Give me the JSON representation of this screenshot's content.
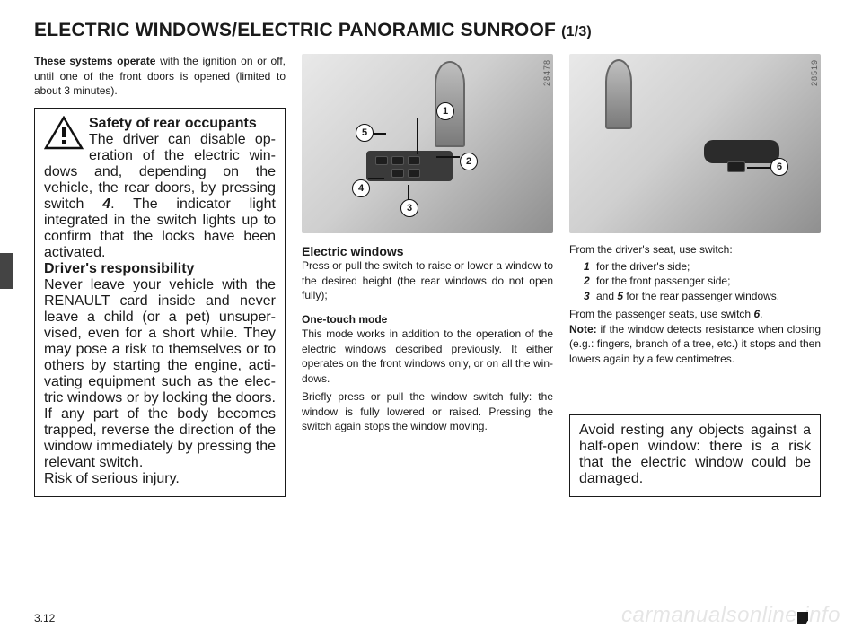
{
  "title_main": "ELECTRIC WINDOWS/ELECTRIC PANORAMIC SUNROOF ",
  "title_pager": "(1/3)",
  "intro_html": "<b>These systems operate</b> with the igni­tion on or off, until one of the front doors is opened (limited to about 3 minutes).",
  "warn_box": {
    "l1_b": "Safety of rear occupants",
    "l1_t": "The driver can disable op­eration of the electric win­dows and, depending on the vehicle, the rear doors, by pressing switch ",
    "l1_sw": "4",
    "l1_t2": ". The indicator light integrated in the switch lights up to confirm that the locks have been activated.",
    "l2_b": "Driver's responsibility",
    "l2_t": "Never leave your vehicle with the RENAULT card inside and never leave a child (or a pet) unsuper­vised, even for a short while. They may pose a risk to themselves or to others by starting the engine, acti­vating equipment such as the elec­tric windows or by locking the doors. If any part of the body becomes trapped, reverse the direction of the window immediately by pressing the relevant switch.",
    "l3": "Risk of serious injury."
  },
  "photo1_code": "28478",
  "photo2_code": "28519",
  "callouts": {
    "c1": "1",
    "c2": "2",
    "c3": "3",
    "c4": "4",
    "c5": "5",
    "c6": "6"
  },
  "mid": {
    "h": "Electric windows",
    "p1": "Press or pull the switch to raise or lower a window to the desired height (the rear windows do not open fully);",
    "h2": "One-touch mode",
    "p2": "This mode works in addition to the operation of the electric windows de­scribed previously. It either operates on the front windows only, or on all the win­dows.",
    "p3": "Briefly press or pull the window switch fully: the window is fully lowered or raised. Pressing the switch again stops the window moving."
  },
  "right": {
    "lead": "From the driver's seat, use switch:",
    "i1n": "1",
    "i1t": "for the driver's side;",
    "i2n": "2",
    "i2t": "for the front passenger side;",
    "i3n": "3",
    "i3mid": " and  ",
    "i3n2": "5",
    "i3t": " for the rear passenger win­dows.",
    "p2a": "From the passenger seats, use switch ",
    "p2sw": "6",
    "p2b": ".",
    "note_b": "Note:",
    "note_t": " if the window detects resistance when closing (e.g.: fingers, branch of a tree, etc.) it stops and then lowers again by a few centimetres.",
    "box": "Avoid resting any objects against a half-open window: there is a risk that the electric window could be damaged."
  },
  "page_num": "3.12",
  "watermark": "carmanualsonline.info"
}
